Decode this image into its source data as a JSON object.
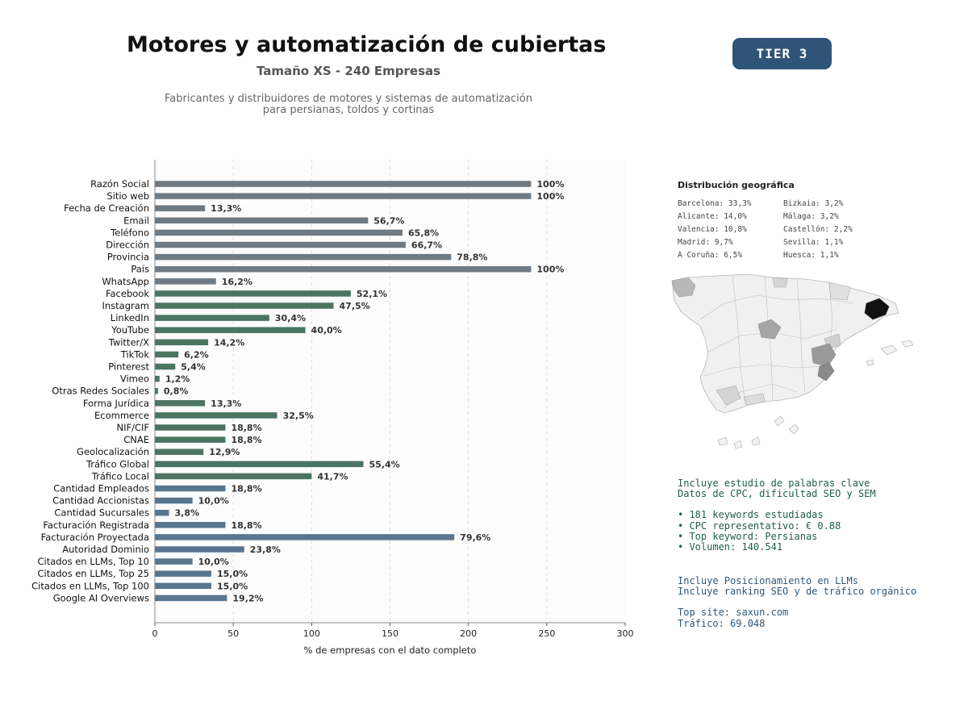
{
  "header": {
    "title": "Motores y automatización de cubiertas",
    "subtitle": "Tamaño XS - 240 Empresas",
    "description_line1": "Fabricantes y distribuidores de motores y sistemas de automatización",
    "description_line2": "para persianas, toldos y cortinas",
    "tier_badge": "TIER 3",
    "tier_color": "#2f5478"
  },
  "chart_data": {
    "type": "bar",
    "orientation": "horizontal",
    "xlabel": "% de empresas con el dato completo",
    "xlim": [
      0,
      300
    ],
    "xticks": [
      0,
      50,
      100,
      150,
      200,
      250,
      300
    ],
    "grid": "vertical dashed",
    "categories": [
      "Razón Social",
      "Sitio web",
      "Fecha de Creación",
      "Email",
      "Teléfono",
      "Dirección",
      "Provincia",
      "País",
      "WhatsApp",
      "Facebook",
      "Instagram",
      "LinkedIn",
      "YouTube",
      "Twitter/X",
      "TikTok",
      "Pinterest",
      "Vimeo",
      "Otras Redes Sociales",
      "Forma Jurídica",
      "Ecommerce",
      "NIF/CIF",
      "CNAE",
      "Geolocalización",
      "Tráfico Global",
      "Tráfico Local",
      "Cantidad Empleados",
      "Cantidad Accionistas",
      "Cantidad Sucursales",
      "Facturación Registrada",
      "Facturación Proyectada",
      "Autoridad Dominio",
      "Citados en LLMs, Top 10",
      "Citados en LLMs, Top 25",
      "Citados en LLMs, Top 100",
      "Google AI Overviews"
    ],
    "values": [
      240,
      240,
      32,
      136,
      158,
      160,
      189,
      240,
      39,
      125,
      114,
      73,
      96,
      34,
      15,
      13,
      3,
      2,
      32,
      78,
      45,
      45,
      31,
      133,
      100,
      45,
      24,
      9,
      45,
      191,
      57,
      24,
      36,
      36,
      46
    ],
    "data_labels": [
      "100%",
      "100%",
      "13,3%",
      "56,7%",
      "65,8%",
      "66,7%",
      "78,8%",
      "100%",
      "16,2%",
      "52,1%",
      "47,5%",
      "30,4%",
      "40,0%",
      "14,2%",
      "6,2%",
      "5,4%",
      "1,2%",
      "0,8%",
      "13,3%",
      "32,5%",
      "18,8%",
      "18,8%",
      "12,9%",
      "55,4%",
      "41,7%",
      "18,8%",
      "10,0%",
      "3,8%",
      "18,8%",
      "79,6%",
      "23,8%",
      "10,0%",
      "15,0%",
      "15,0%",
      "19,2%"
    ],
    "groups": [
      "gray",
      "gray",
      "gray",
      "gray",
      "gray",
      "gray",
      "gray",
      "gray",
      "gray",
      "green",
      "green",
      "green",
      "green",
      "green",
      "green",
      "green",
      "green",
      "green",
      "green",
      "green",
      "green",
      "green",
      "green",
      "green",
      "green",
      "blue",
      "blue",
      "blue",
      "blue",
      "blue",
      "blue",
      "blue",
      "blue",
      "blue",
      "blue"
    ],
    "colors": {
      "gray": "#6e7a84",
      "green": "#4b7562",
      "blue": "#58768f"
    }
  },
  "geo": {
    "title": "Distribución geográfica",
    "left": [
      "Barcelona: 33,3%",
      "Alicante: 14,0%",
      "Valencia: 10,8%",
      "Madrid: 9,7%",
      "A Coruña: 6,5%"
    ],
    "right": [
      "Bizkaia: 3,2%",
      "Málaga: 3,2%",
      "Castellón: 2,2%",
      "Sevilla: 1,1%",
      "Huesca: 1,1%"
    ]
  },
  "keywords": {
    "line1": "Incluye estudio de palabras clave",
    "line2": "Datos de CPC, dificultad SEO y SEM",
    "bullets": [
      "• 181 keywords estudiadas",
      "• CPC representativo: € 0.88",
      "• Top keyword: Persianas",
      "• Volumen: 140.541"
    ]
  },
  "llm": {
    "line1": "Incluye Posicionamiento en LLMs",
    "line2": "Incluye ranking SEO y de tráfico orgánico",
    "top_site": "Top site: saxun.com",
    "traffic": "Tráfico: 69.048"
  }
}
